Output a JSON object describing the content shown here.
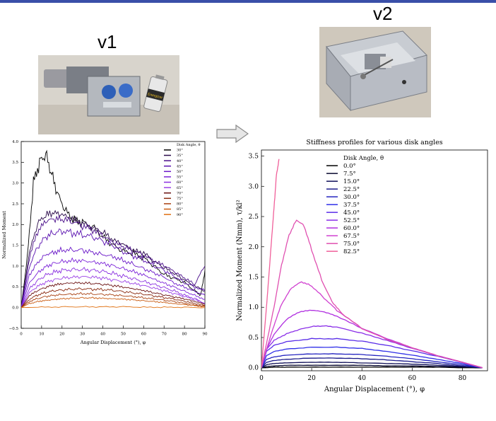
{
  "labels": {
    "v1": "v1",
    "v2": "v2"
  },
  "colors": {
    "topbar": "#3a4fa8"
  },
  "photos": {
    "v1": {
      "icon": "prototype-photo-v1-icon",
      "battery_text": "Energizer"
    },
    "v2": {
      "icon": "prototype-photo-v2-icon"
    }
  },
  "chart_data": [
    {
      "type": "line",
      "title": "",
      "xlabel": "Angular Displacement (°), φ",
      "ylabel": "Normalized Moment",
      "xlim": [
        0,
        90
      ],
      "ylim": [
        -0.5,
        4.0
      ],
      "xticks": [
        "0",
        "10",
        "20",
        "30",
        "40",
        "50",
        "60",
        "70",
        "80",
        "90"
      ],
      "yticks": [
        "−0.5",
        "0.0",
        "0.5",
        "1.0",
        "1.5",
        "2.0",
        "2.5",
        "3.0",
        "3.5",
        "4.0"
      ],
      "legend_title": "Disk Angle, θ",
      "legend_position": "top-right",
      "series": [
        {
          "name": "30°",
          "color": "#000000",
          "x": [
            0,
            3,
            6,
            9,
            12,
            15,
            18,
            22,
            26,
            30,
            35,
            40,
            45,
            50,
            55,
            60,
            65,
            70,
            75,
            80,
            85,
            88,
            90
          ],
          "y": [
            0,
            1.2,
            3.0,
            3.5,
            3.7,
            3.2,
            2.7,
            2.3,
            2.1,
            2.05,
            1.95,
            1.7,
            1.5,
            1.35,
            1.3,
            1.2,
            1.0,
            0.8,
            0.7,
            0.6,
            0.4,
            0.3,
            0.9
          ]
        },
        {
          "name": "35°",
          "color": "#2a0a4a",
          "x": [
            0,
            4,
            8,
            12,
            16,
            20,
            25,
            30,
            35,
            40,
            45,
            50,
            55,
            60,
            65,
            70,
            75,
            80,
            85,
            90
          ],
          "y": [
            0,
            1.3,
            2.0,
            2.2,
            2.25,
            2.2,
            2.1,
            2.0,
            1.9,
            1.8,
            1.6,
            1.5,
            1.35,
            1.3,
            1.1,
            0.95,
            0.8,
            0.65,
            0.5,
            0.4
          ]
        },
        {
          "name": "40°",
          "color": "#4a0e8a",
          "x": [
            0,
            4,
            8,
            12,
            16,
            20,
            25,
            30,
            35,
            40,
            45,
            50,
            55,
            60,
            65,
            70,
            75,
            80,
            85,
            90
          ],
          "y": [
            0,
            1.2,
            1.8,
            2.05,
            2.1,
            2.1,
            2.05,
            1.95,
            1.85,
            1.7,
            1.55,
            1.45,
            1.35,
            1.25,
            1.1,
            1.0,
            0.85,
            0.7,
            0.55,
            1.0
          ]
        },
        {
          "name": "45°",
          "color": "#5a12b0",
          "x": [
            0,
            4,
            8,
            12,
            16,
            20,
            25,
            30,
            35,
            40,
            45,
            50,
            55,
            60,
            65,
            70,
            75,
            80,
            85,
            90
          ],
          "y": [
            0,
            1.0,
            1.45,
            1.7,
            1.8,
            1.85,
            1.8,
            1.75,
            1.7,
            1.6,
            1.5,
            1.35,
            1.25,
            1.15,
            1.0,
            0.9,
            0.75,
            0.6,
            0.5,
            0.4
          ]
        },
        {
          "name": "50°",
          "color": "#6a18c8",
          "x": [
            0,
            4,
            8,
            12,
            16,
            20,
            25,
            30,
            35,
            40,
            45,
            50,
            55,
            60,
            65,
            70,
            75,
            80,
            85,
            90
          ],
          "y": [
            0,
            0.8,
            1.1,
            1.3,
            1.35,
            1.4,
            1.4,
            1.4,
            1.35,
            1.3,
            1.25,
            1.15,
            1.05,
            0.95,
            0.85,
            0.75,
            0.6,
            0.5,
            0.4,
            0.3
          ]
        },
        {
          "name": "55°",
          "color": "#7a22d8",
          "x": [
            0,
            4,
            8,
            12,
            16,
            20,
            25,
            30,
            35,
            40,
            45,
            50,
            55,
            60,
            65,
            70,
            75,
            80,
            85,
            90
          ],
          "y": [
            0,
            0.6,
            0.85,
            1.0,
            1.08,
            1.12,
            1.15,
            1.15,
            1.12,
            1.08,
            1.02,
            0.95,
            0.88,
            0.8,
            0.7,
            0.6,
            0.5,
            0.4,
            0.3,
            0.2
          ]
        },
        {
          "name": "60°",
          "color": "#8a30e0",
          "x": [
            0,
            4,
            8,
            12,
            16,
            20,
            25,
            30,
            35,
            40,
            45,
            50,
            55,
            60,
            65,
            70,
            75,
            80,
            85,
            90
          ],
          "y": [
            0,
            0.45,
            0.65,
            0.78,
            0.85,
            0.9,
            0.92,
            0.92,
            0.9,
            0.87,
            0.82,
            0.76,
            0.7,
            0.63,
            0.56,
            0.48,
            0.4,
            0.3,
            0.22,
            0.1
          ]
        },
        {
          "name": "65°",
          "color": "#9a40e6",
          "x": [
            0,
            4,
            8,
            12,
            16,
            20,
            25,
            30,
            35,
            40,
            45,
            50,
            55,
            60,
            65,
            70,
            75,
            80,
            85,
            90
          ],
          "y": [
            0,
            0.35,
            0.5,
            0.6,
            0.66,
            0.7,
            0.72,
            0.73,
            0.72,
            0.7,
            0.66,
            0.62,
            0.57,
            0.52,
            0.46,
            0.4,
            0.33,
            0.26,
            0.18,
            0.1
          ]
        },
        {
          "name": "70°",
          "color": "#6a1010",
          "x": [
            0,
            4,
            8,
            12,
            16,
            20,
            25,
            30,
            35,
            40,
            45,
            50,
            55,
            60,
            65,
            70,
            75,
            80,
            85,
            90
          ],
          "y": [
            0,
            0.28,
            0.4,
            0.48,
            0.53,
            0.56,
            0.58,
            0.58,
            0.57,
            0.55,
            0.52,
            0.48,
            0.44,
            0.4,
            0.35,
            0.3,
            0.25,
            0.2,
            0.14,
            0.08
          ]
        },
        {
          "name": "75°",
          "color": "#8a2a10",
          "x": [
            0,
            4,
            8,
            12,
            16,
            20,
            25,
            30,
            35,
            40,
            45,
            50,
            55,
            60,
            65,
            70,
            75,
            80,
            85,
            90
          ],
          "y": [
            0,
            0.2,
            0.3,
            0.36,
            0.4,
            0.42,
            0.44,
            0.45,
            0.44,
            0.43,
            0.41,
            0.38,
            0.35,
            0.32,
            0.28,
            0.24,
            0.2,
            0.15,
            0.1,
            0.05
          ]
        },
        {
          "name": "80°",
          "color": "#a84010",
          "x": [
            0,
            4,
            8,
            12,
            16,
            20,
            25,
            30,
            35,
            40,
            45,
            50,
            55,
            60,
            65,
            70,
            75,
            80,
            85,
            90
          ],
          "y": [
            0,
            0.15,
            0.22,
            0.27,
            0.3,
            0.32,
            0.33,
            0.34,
            0.33,
            0.32,
            0.31,
            0.29,
            0.27,
            0.24,
            0.21,
            0.18,
            0.15,
            0.11,
            0.07,
            0.03
          ]
        },
        {
          "name": "85°",
          "color": "#c85a10",
          "x": [
            0,
            4,
            8,
            12,
            16,
            20,
            25,
            30,
            35,
            40,
            45,
            50,
            55,
            60,
            65,
            70,
            75,
            80,
            85,
            90
          ],
          "y": [
            0,
            0.1,
            0.15,
            0.18,
            0.2,
            0.22,
            0.23,
            0.24,
            0.24,
            0.23,
            0.22,
            0.21,
            0.19,
            0.17,
            0.15,
            0.13,
            0.1,
            0.08,
            0.05,
            0.02
          ]
        },
        {
          "name": "90°",
          "color": "#e07010",
          "x": [
            0,
            10,
            20,
            30,
            40,
            50,
            60,
            70,
            80,
            90
          ],
          "y": [
            0,
            0.01,
            0.02,
            0.02,
            0.02,
            0.02,
            0.01,
            0.01,
            0.01,
            0.0
          ]
        }
      ]
    },
    {
      "type": "line",
      "title": "Stiffness profiles for various disk angles",
      "xlabel": "Angular Displacement (°), φ",
      "ylabel": "Normalized Moment (Nmm), τ/kl²",
      "xlim": [
        0,
        90
      ],
      "ylim": [
        -0.05,
        3.6
      ],
      "xticks": [
        "0",
        "20",
        "40",
        "60",
        "80"
      ],
      "yticks": [
        "0.0",
        "0.5",
        "1.0",
        "1.5",
        "2.0",
        "2.5",
        "3.0",
        "3.5"
      ],
      "legend_title": "Disk Angle, θ",
      "legend_position": "top-center",
      "series": [
        {
          "name": "0.0°",
          "color": "#000000",
          "x": [
            0,
            2,
            5,
            10,
            20,
            30,
            40,
            50,
            60,
            70,
            80,
            88
          ],
          "y": [
            0,
            0.0,
            0.01,
            0.01,
            0.01,
            0.01,
            0.01,
            0.01,
            0.01,
            0.01,
            0.0,
            0.0
          ]
        },
        {
          "name": "7.5°",
          "color": "#0a0a30",
          "x": [
            0,
            2,
            5,
            10,
            20,
            30,
            40,
            50,
            60,
            70,
            80,
            88
          ],
          "y": [
            0,
            0.02,
            0.03,
            0.04,
            0.04,
            0.04,
            0.04,
            0.03,
            0.03,
            0.02,
            0.01,
            0.0
          ]
        },
        {
          "name": "15.0°",
          "color": "#10105a",
          "x": [
            0,
            2,
            5,
            10,
            20,
            30,
            40,
            50,
            60,
            70,
            80,
            88
          ],
          "y": [
            0,
            0.05,
            0.07,
            0.08,
            0.09,
            0.09,
            0.08,
            0.07,
            0.06,
            0.04,
            0.02,
            0.0
          ]
        },
        {
          "name": "22.5°",
          "color": "#1a1a8a",
          "x": [
            0,
            2,
            5,
            10,
            20,
            30,
            40,
            50,
            60,
            70,
            80,
            88
          ],
          "y": [
            0,
            0.09,
            0.12,
            0.14,
            0.16,
            0.16,
            0.15,
            0.13,
            0.1,
            0.07,
            0.03,
            0.0
          ]
        },
        {
          "name": "30.0°",
          "color": "#2424c0",
          "x": [
            0,
            2,
            5,
            10,
            20,
            30,
            40,
            50,
            60,
            70,
            80,
            88
          ],
          "y": [
            0,
            0.14,
            0.18,
            0.21,
            0.23,
            0.23,
            0.22,
            0.19,
            0.15,
            0.1,
            0.05,
            0.0
          ]
        },
        {
          "name": "37.5°",
          "color": "#3030e8",
          "x": [
            0,
            2,
            5,
            10,
            20,
            30,
            40,
            50,
            60,
            70,
            80,
            88
          ],
          "y": [
            0,
            0.2,
            0.27,
            0.31,
            0.34,
            0.34,
            0.32,
            0.27,
            0.21,
            0.14,
            0.07,
            0.0
          ]
        },
        {
          "name": "45.0°",
          "color": "#5a2ee8",
          "x": [
            0,
            2,
            5,
            10,
            20,
            30,
            40,
            50,
            60,
            70,
            80,
            88
          ],
          "y": [
            0,
            0.27,
            0.37,
            0.43,
            0.48,
            0.48,
            0.44,
            0.37,
            0.28,
            0.19,
            0.09,
            0.0
          ]
        },
        {
          "name": "52.5°",
          "color": "#8a2ee8",
          "x": [
            0,
            2,
            5,
            10,
            15,
            20,
            25,
            30,
            40,
            50,
            60,
            70,
            80,
            88
          ],
          "y": [
            0,
            0.3,
            0.45,
            0.56,
            0.63,
            0.68,
            0.69,
            0.67,
            0.57,
            0.45,
            0.32,
            0.2,
            0.09,
            0.0
          ]
        },
        {
          "name": "60.0°",
          "color": "#b030e0",
          "x": [
            0,
            2,
            5,
            10,
            15,
            20,
            25,
            30,
            40,
            50,
            60,
            70,
            80,
            88
          ],
          "y": [
            0,
            0.3,
            0.55,
            0.8,
            0.92,
            0.95,
            0.92,
            0.85,
            0.65,
            0.48,
            0.33,
            0.2,
            0.09,
            0.0
          ]
        },
        {
          "name": "67.5°",
          "color": "#d040d0",
          "x": [
            0,
            2,
            5,
            8,
            12,
            16,
            20,
            25,
            30,
            40,
            50,
            60,
            70,
            80,
            88
          ],
          "y": [
            0,
            0.3,
            0.7,
            1.05,
            1.32,
            1.42,
            1.35,
            1.15,
            0.95,
            0.65,
            0.47,
            0.33,
            0.2,
            0.09,
            0.0
          ]
        },
        {
          "name": "75.0°",
          "color": "#e050b0",
          "x": [
            0,
            2,
            5,
            8,
            11,
            14,
            17,
            20,
            24,
            28,
            32,
            40,
            50,
            60,
            70,
            80,
            88
          ],
          "y": [
            0,
            0.4,
            1.0,
            1.7,
            2.2,
            2.45,
            2.35,
            1.95,
            1.45,
            1.1,
            0.9,
            0.65,
            0.47,
            0.33,
            0.2,
            0.09,
            0.0
          ]
        },
        {
          "name": "82.5°",
          "color": "#f0609a",
          "x": [
            0,
            1,
            2,
            3,
            4,
            5,
            6,
            7
          ],
          "y": [
            0,
            0.5,
            1.0,
            1.55,
            2.1,
            2.65,
            3.2,
            3.45
          ]
        }
      ]
    }
  ]
}
